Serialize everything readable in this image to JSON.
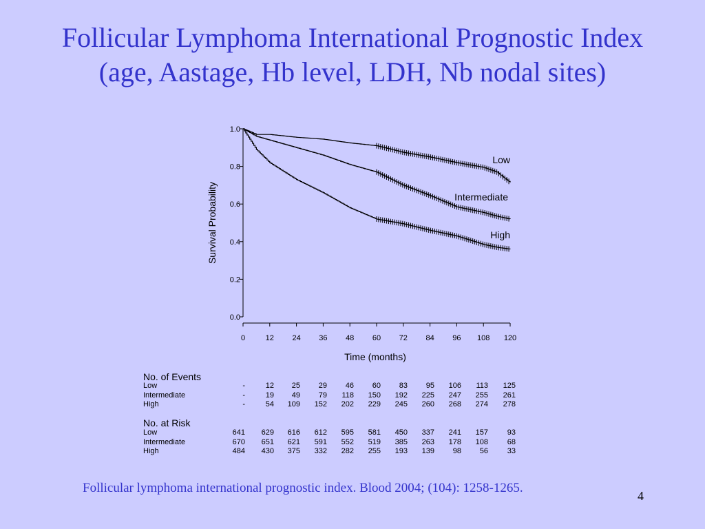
{
  "slide": {
    "title_line1": "Follicular Lymphoma International Prognostic Index",
    "title_line2": "(age, Aastage, Hb level, LDH, Nb nodal sites)",
    "citation": "Follicular lymphoma international prognostic index. Blood 2004; (104): 1258-1265.",
    "page_number": "4",
    "title_color": "#3333cc",
    "background_color": "#ccccff"
  },
  "chart_data": {
    "type": "line",
    "xlabel": "Time (months)",
    "ylabel": "Survival Probability",
    "xlim": [
      0,
      120
    ],
    "ylim": [
      0,
      1
    ],
    "x_ticks": [
      "0",
      "12",
      "24",
      "36",
      "48",
      "60",
      "72",
      "84",
      "96",
      "108",
      "120"
    ],
    "y_ticks": [
      "0.0",
      "0.2",
      "0.4",
      "0.6",
      "0.8",
      "1.0"
    ],
    "grid": false,
    "series": [
      {
        "name": "Low",
        "x": [
          0,
          6,
          12,
          24,
          36,
          48,
          60,
          72,
          84,
          96,
          108,
          114,
          120
        ],
        "y": [
          1.0,
          0.97,
          0.97,
          0.955,
          0.945,
          0.925,
          0.91,
          0.875,
          0.85,
          0.82,
          0.795,
          0.77,
          0.715
        ],
        "censored": true
      },
      {
        "name": "Intermediate",
        "x": [
          0,
          6,
          12,
          24,
          36,
          48,
          60,
          72,
          84,
          96,
          108,
          114,
          120
        ],
        "y": [
          1.0,
          0.96,
          0.94,
          0.9,
          0.86,
          0.81,
          0.77,
          0.7,
          0.645,
          0.585,
          0.555,
          0.535,
          0.52
        ],
        "censored": true
      },
      {
        "name": "High",
        "x": [
          0,
          6,
          12,
          24,
          36,
          48,
          60,
          72,
          84,
          96,
          108,
          114,
          120
        ],
        "y": [
          1.0,
          0.89,
          0.82,
          0.73,
          0.66,
          0.58,
          0.52,
          0.495,
          0.46,
          0.43,
          0.385,
          0.37,
          0.36
        ],
        "censored": true
      }
    ],
    "tables": {
      "events": {
        "heading": "No. of Events",
        "rows": [
          {
            "label": "Low",
            "values": [
              "-",
              "12",
              "25",
              "29",
              "46",
              "60",
              "83",
              "95",
              "106",
              "113",
              "125"
            ]
          },
          {
            "label": "Intermediate",
            "values": [
              "-",
              "19",
              "49",
              "79",
              "118",
              "150",
              "192",
              "225",
              "247",
              "255",
              "261"
            ]
          },
          {
            "label": "High",
            "values": [
              "-",
              "54",
              "109",
              "152",
              "202",
              "229",
              "245",
              "260",
              "268",
              "274",
              "278"
            ]
          }
        ]
      },
      "at_risk": {
        "heading": "No. at Risk",
        "rows": [
          {
            "label": "Low",
            "values": [
              "641",
              "629",
              "616",
              "612",
              "595",
              "581",
              "450",
              "337",
              "241",
              "157",
              "93"
            ]
          },
          {
            "label": "Intermediate",
            "values": [
              "670",
              "651",
              "621",
              "591",
              "552",
              "519",
              "385",
              "263",
              "178",
              "108",
              "68"
            ]
          },
          {
            "label": "High",
            "values": [
              "484",
              "430",
              "375",
              "332",
              "282",
              "255",
              "193",
              "139",
              "98",
              "56",
              "33"
            ]
          }
        ]
      }
    }
  }
}
